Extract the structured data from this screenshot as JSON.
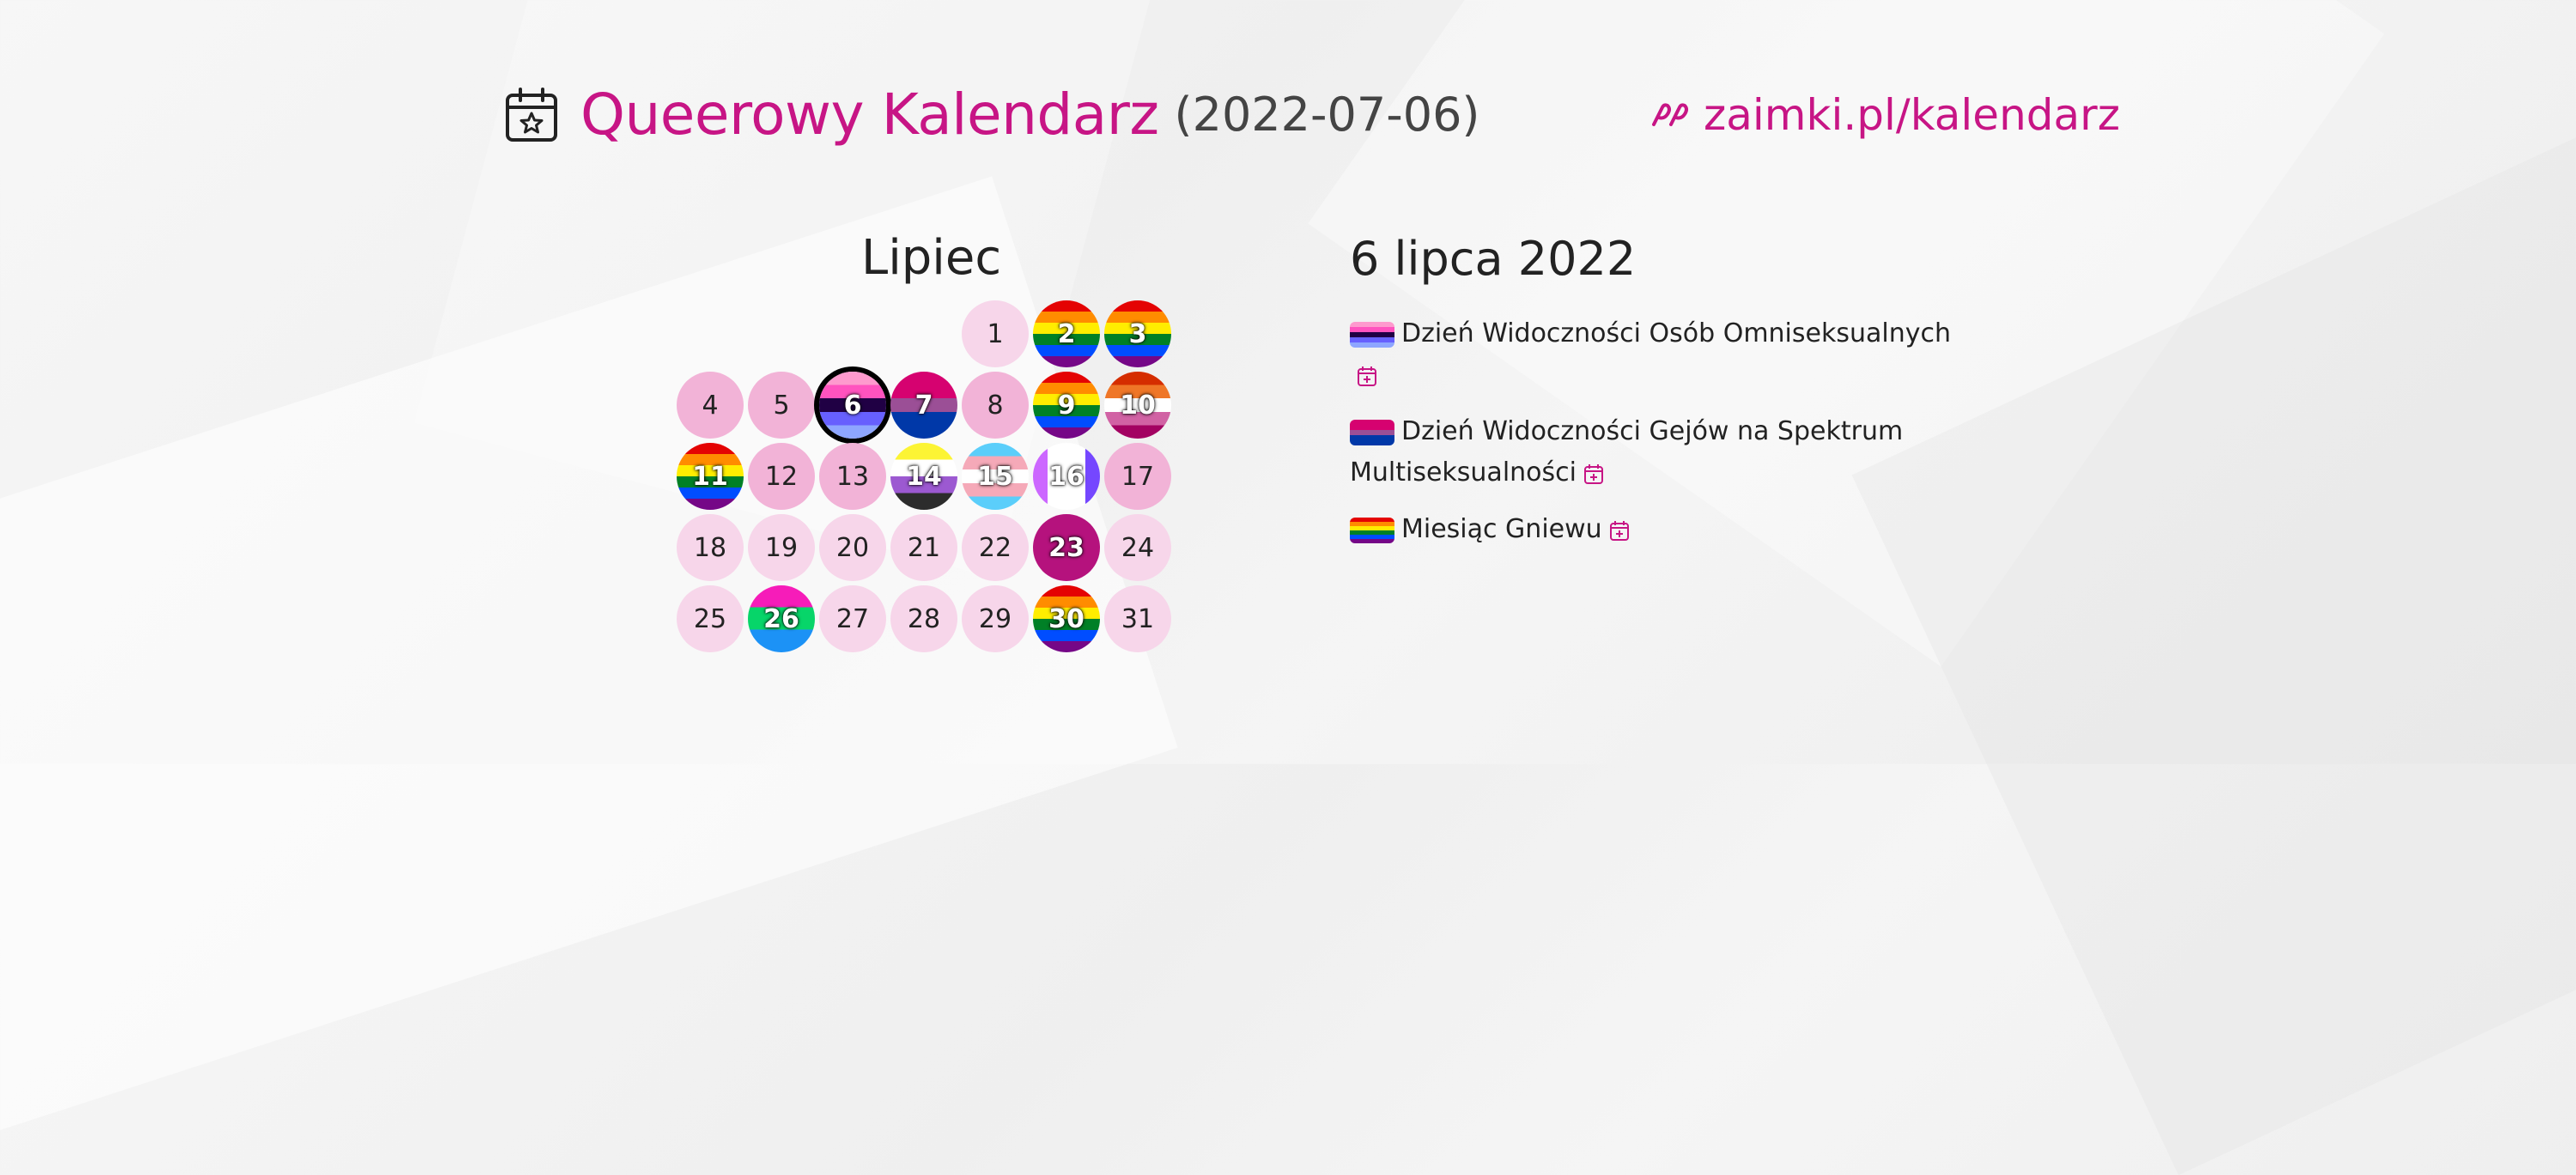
{
  "header": {
    "title": "Queerowy Kalendarz",
    "date": "(2022-07-06)",
    "site_url": "zaimki.pl/kalendarz"
  },
  "month": {
    "title": "Lipiec",
    "days": [
      {
        "n": "1",
        "style": "light"
      },
      {
        "n": "2",
        "style": "rainbow"
      },
      {
        "n": "3",
        "style": "rainbow"
      },
      {
        "n": "4",
        "style": "mid"
      },
      {
        "n": "5",
        "style": "mid"
      },
      {
        "n": "6",
        "style": "omni",
        "selected": true
      },
      {
        "n": "7",
        "style": "bi"
      },
      {
        "n": "8",
        "style": "mid"
      },
      {
        "n": "9",
        "style": "rainbow"
      },
      {
        "n": "10",
        "style": "lesbian"
      },
      {
        "n": "11",
        "style": "rainbow"
      },
      {
        "n": "12",
        "style": "mid"
      },
      {
        "n": "13",
        "style": "mid"
      },
      {
        "n": "14",
        "style": "nonbinary"
      },
      {
        "n": "15",
        "style": "trans"
      },
      {
        "n": "16",
        "style": "drag"
      },
      {
        "n": "17",
        "style": "mid"
      },
      {
        "n": "18",
        "style": "light"
      },
      {
        "n": "19",
        "style": "light"
      },
      {
        "n": "20",
        "style": "light"
      },
      {
        "n": "21",
        "style": "light"
      },
      {
        "n": "22",
        "style": "light"
      },
      {
        "n": "23",
        "style": "deaf"
      },
      {
        "n": "24",
        "style": "light"
      },
      {
        "n": "25",
        "style": "light"
      },
      {
        "n": "26",
        "style": "poly"
      },
      {
        "n": "27",
        "style": "light"
      },
      {
        "n": "28",
        "style": "light"
      },
      {
        "n": "29",
        "style": "light"
      },
      {
        "n": "30",
        "style": "deaf-rainbow"
      },
      {
        "n": "31",
        "style": "light"
      }
    ]
  },
  "details": {
    "title": "6 lipca 2022",
    "events": [
      {
        "label": "Dzień Widoczności Osób Omniseksualnych",
        "flag": "omni"
      },
      {
        "label": "Dzień Widoczności Gejów na Spektrum Multiseksualności",
        "flag": "bi"
      },
      {
        "label": "Miesiąc Gniewu",
        "flag": "rainbow"
      }
    ]
  },
  "colors": {
    "accent": "#c71585",
    "text": "#222222"
  }
}
